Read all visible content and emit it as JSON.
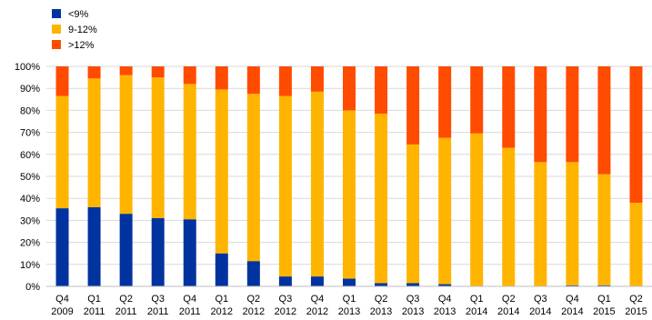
{
  "chart_data": {
    "type": "bar",
    "stacked": true,
    "title": "",
    "xlabel": "",
    "ylabel": "",
    "ylim": [
      0,
      100
    ],
    "y_ticks": [
      "0%",
      "10%",
      "20%",
      "30%",
      "40%",
      "50%",
      "60%",
      "70%",
      "80%",
      "90%",
      "100%"
    ],
    "grid": true,
    "legend_position": "top-left",
    "categories": [
      [
        "Q4",
        "2009"
      ],
      [
        "Q1",
        "2011"
      ],
      [
        "Q2",
        "2011"
      ],
      [
        "Q3",
        "2011"
      ],
      [
        "Q4",
        "2011"
      ],
      [
        "Q1",
        "2012"
      ],
      [
        "Q2",
        "2012"
      ],
      [
        "Q3",
        "2012"
      ],
      [
        "Q4",
        "2012"
      ],
      [
        "Q1",
        "2013"
      ],
      [
        "Q2",
        "2013"
      ],
      [
        "Q3",
        "2013"
      ],
      [
        "Q4",
        "2013"
      ],
      [
        "Q1",
        "2014"
      ],
      [
        "Q2",
        "2014"
      ],
      [
        "Q3",
        "2014"
      ],
      [
        "Q4",
        "2014"
      ],
      [
        "Q1",
        "2015"
      ],
      [
        "Q2",
        "2015"
      ]
    ],
    "series": [
      {
        "name": "<9%",
        "color": "#0033a0",
        "values": [
          35.5,
          36,
          33,
          31,
          30.5,
          15,
          11.5,
          4.5,
          4.5,
          3.5,
          1.5,
          1.5,
          1,
          0,
          0,
          0,
          0.5,
          0.5,
          0
        ]
      },
      {
        "name": "9-12%",
        "color": "#ffb400",
        "values": [
          51,
          58.5,
          63,
          64,
          61.5,
          74.5,
          76,
          82,
          84,
          76.5,
          77,
          63,
          66.5,
          69.5,
          63,
          56.5,
          56,
          50.5,
          38
        ]
      },
      {
        "name": ">12%",
        "color": "#ff4b00",
        "values": [
          13.5,
          5.5,
          4,
          5,
          8,
          10.5,
          12.5,
          13.5,
          11.5,
          20,
          21.5,
          35.5,
          32.5,
          30.5,
          37,
          43.5,
          43.5,
          49,
          62
        ]
      }
    ]
  }
}
